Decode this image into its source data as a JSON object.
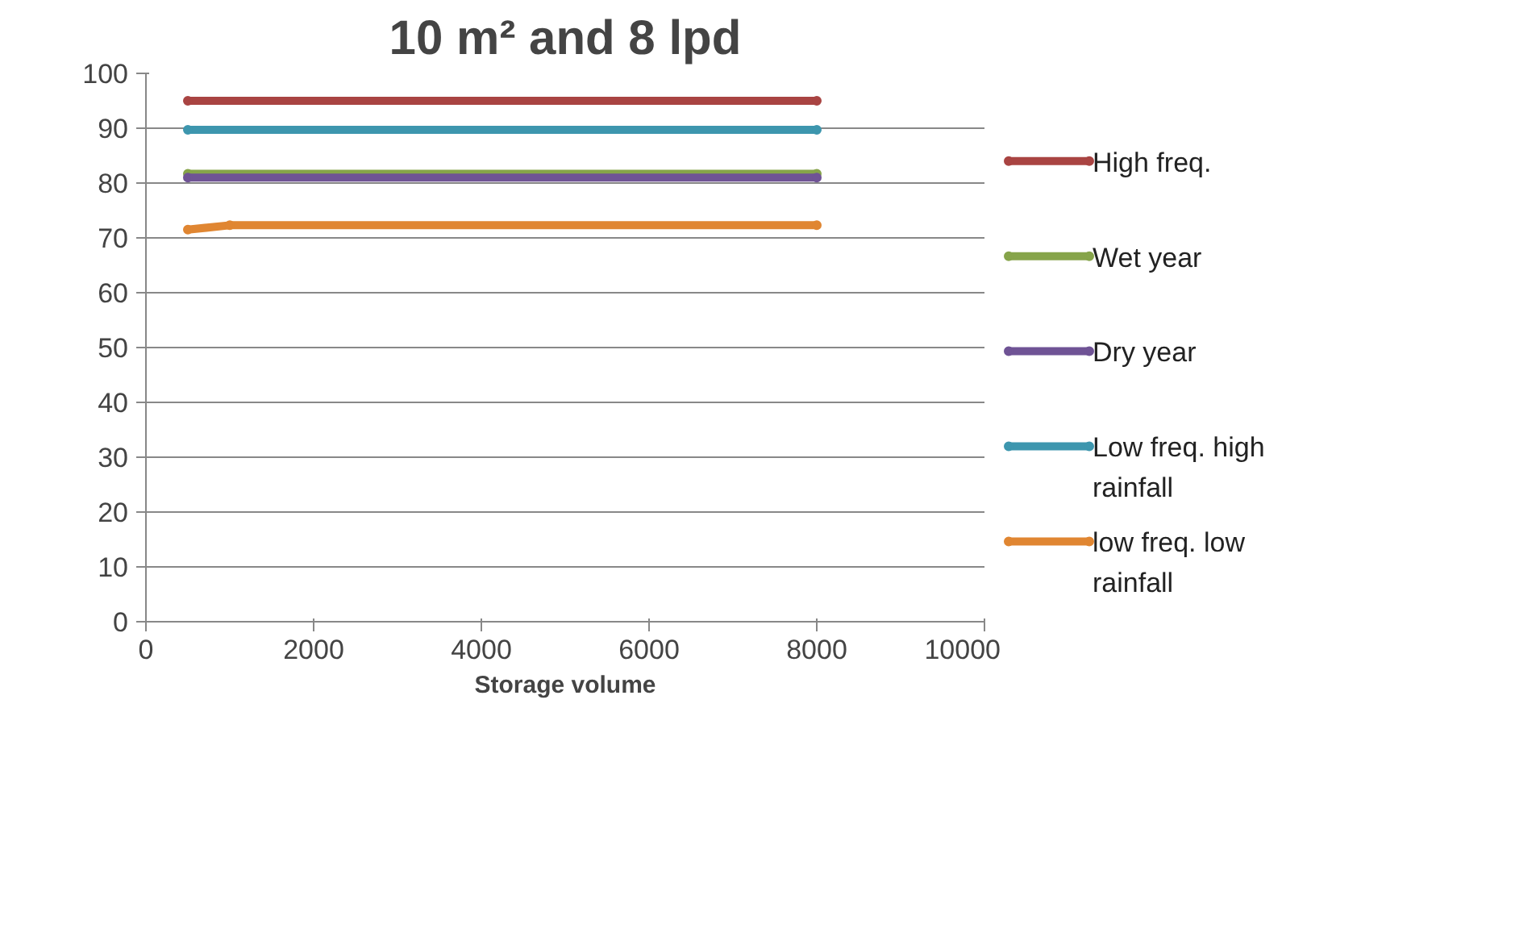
{
  "chart_data": {
    "type": "line",
    "title": "10 m² and 8 lpd",
    "xlabel": "Storage volume",
    "x": [
      500,
      8000
    ],
    "series": [
      {
        "name": "High freq.",
        "color": "#a94442",
        "values": [
          95,
          95
        ]
      },
      {
        "name": "Wet year",
        "color": "#86a44a",
        "values": [
          81.7,
          81.7
        ]
      },
      {
        "name": "Dry year",
        "color": "#6f5395",
        "values": [
          81,
          81
        ]
      },
      {
        "name": "Low freq. high rainfall",
        "color": "#3d96ae",
        "values": [
          89.7,
          89.7
        ]
      },
      {
        "name": "low freq. low rainfall",
        "color": "#e08632",
        "x": [
          500,
          1000,
          8000
        ],
        "values": [
          71.5,
          72.3,
          72.3
        ]
      }
    ],
    "xlim": [
      0,
      10000
    ],
    "xticks": [
      0,
      2000,
      4000,
      6000,
      8000,
      10000
    ],
    "ylim": [
      0,
      100
    ],
    "yticks": [
      0,
      10,
      20,
      30,
      40,
      50,
      60,
      70,
      80,
      90,
      100
    ],
    "grid": "y",
    "legend": "right",
    "marker": "circle",
    "line_style": "solid"
  }
}
